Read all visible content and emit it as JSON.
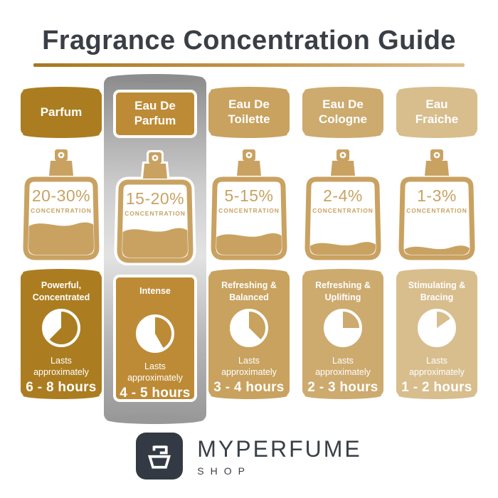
{
  "title": "Fragrance Concentration Guide",
  "colors": {
    "ink": "#3a3f46",
    "bottle": "#c9a262",
    "logo_bg": "#343a44",
    "divider": [
      "#a8771f",
      "#c3944a",
      "#ddc08f"
    ],
    "highlight": [
      "#8d8d8d",
      "#cdcdcd",
      "#e3e3e3",
      "#b4b4b4",
      "#989898"
    ],
    "card_text": "#ffffff"
  },
  "columns": [
    {
      "name": "Parfum",
      "concentration": "20-30%",
      "concentration_label": "CONCENTRATION",
      "fill_level": 0.43,
      "trait": "Powerful,\nConcentrated",
      "lasts": "Lasts\napproximately",
      "duration": "6 - 8 hours",
      "accent": "#ab7d20",
      "pie_degrees": 225,
      "highlighted": false
    },
    {
      "name": "Eau De\nParfum",
      "concentration": "15-20%",
      "concentration_label": "CONCENTRATION",
      "fill_level": 0.39,
      "trait": "Intense",
      "lasts": "Lasts\napproximately",
      "duration": "4 - 5 hours",
      "accent": "#bd8b36",
      "pie_degrees": 150,
      "highlighted": true
    },
    {
      "name": "Eau De\nToilette",
      "concentration": "5-15%",
      "concentration_label": "CONCENTRATION",
      "fill_level": 0.28,
      "trait": "Refreshing &\nBalanced",
      "lasts": "Lasts\napproximately",
      "duration": "3 - 4 hours",
      "accent": "#c8a25e",
      "pie_degrees": 135,
      "highlighted": false
    },
    {
      "name": "Eau De\nCologne",
      "concentration": "2-4%",
      "concentration_label": "CONCENTRATION",
      "fill_level": 0.16,
      "trait": "Refreshing &\nUplifting",
      "lasts": "Lasts\napproximately",
      "duration": "2 - 3 hours",
      "accent": "#cdaa6e",
      "pie_degrees": 90,
      "highlighted": false
    },
    {
      "name": "Eau\nFraiche",
      "concentration": "1-3%",
      "concentration_label": "CONCENTRATION",
      "fill_level": 0.11,
      "trait": "Stimulating &\nBracing",
      "lasts": "Lasts\napproximately",
      "duration": "1 - 2 hours",
      "accent": "#d8bd8d",
      "pie_degrees": 55,
      "highlighted": false
    }
  ],
  "logo": {
    "brand": "MYPERFUME",
    "sub": "SHOP"
  }
}
